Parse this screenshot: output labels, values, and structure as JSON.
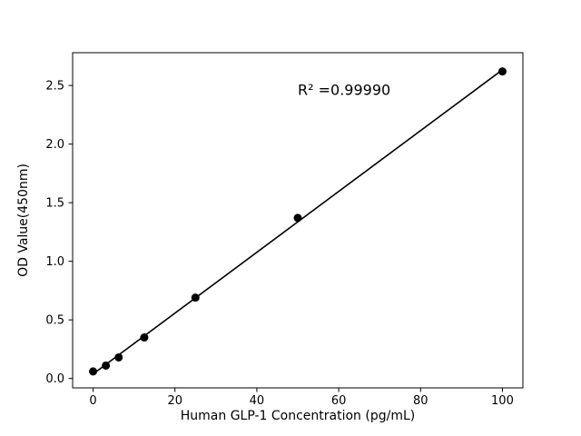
{
  "figure": {
    "background": "#ffffff"
  },
  "chart_data": {
    "type": "scatter",
    "title": "",
    "xlabel": "Human GLP-1 Concentration (pg/mL)",
    "ylabel": "OD Value(450nm)",
    "x": [
      0,
      3.125,
      6.25,
      12.5,
      25,
      50,
      100
    ],
    "y": [
      0.06,
      0.11,
      0.18,
      0.35,
      0.69,
      1.37,
      2.62
    ],
    "xlim": [
      -5,
      105
    ],
    "ylim": [
      -0.08,
      2.78
    ],
    "xticks": [
      0,
      20,
      40,
      60,
      80,
      100
    ],
    "yticks": [
      0.0,
      0.5,
      1.0,
      1.5,
      2.0,
      2.5
    ],
    "grid": false,
    "legend_position": "none",
    "line_color": "#000000",
    "marker_color": "#000000",
    "axis_color": "#000000",
    "annotation": {
      "text": "R² =0.99990",
      "x": 50,
      "y": 2.42
    }
  }
}
